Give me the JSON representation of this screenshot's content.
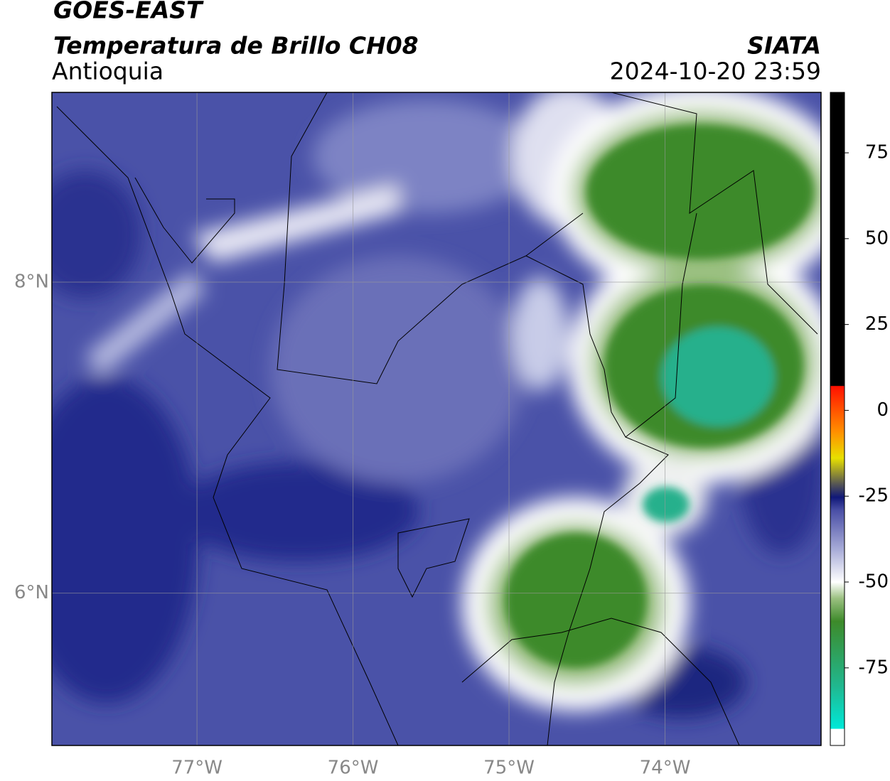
{
  "header": {
    "title": "GOES-EAST",
    "subtitle": "Temperatura de Brillo CH08",
    "region": "Antioquia",
    "source": "SIATA",
    "timestamp": "2024-10-20 23:59"
  },
  "map": {
    "xlim": [
      -77.93,
      -73.0
    ],
    "ylim": [
      5.02,
      9.22
    ],
    "xticks": [
      {
        "value": -77,
        "label": "77°W"
      },
      {
        "value": -76,
        "label": "76°W"
      },
      {
        "value": -75,
        "label": "75°W"
      },
      {
        "value": -74,
        "label": "74°W"
      }
    ],
    "yticks": [
      {
        "value": 6,
        "label": "6°N"
      },
      {
        "value": 8,
        "label": "8°N"
      }
    ],
    "grid": true,
    "colorbar": {
      "lim": [
        -97.6,
        92.6
      ],
      "ticks": [
        75,
        50,
        25,
        0,
        -25,
        -50,
        -75
      ]
    }
  }
}
